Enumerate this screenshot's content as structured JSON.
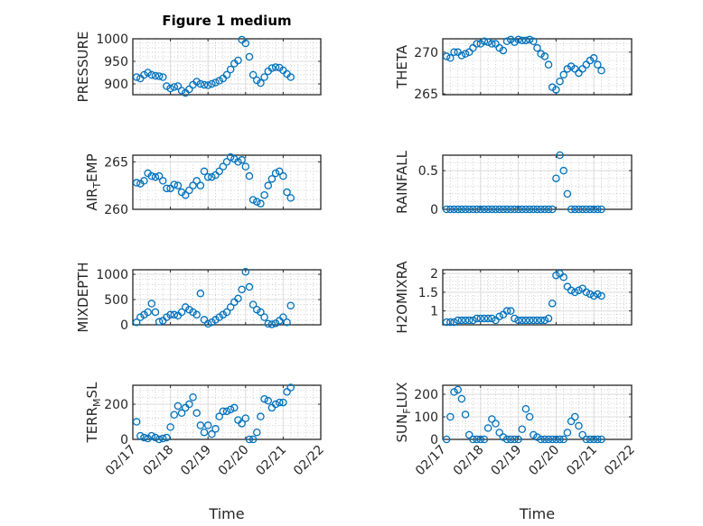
{
  "chart_data": {
    "type": "scatter",
    "title": "Figure 1 medium",
    "marker": "circle",
    "color": "#0072BD",
    "grid": "on (major + minor)",
    "x_unit": "days since 02/17",
    "xlim": [
      0,
      5
    ],
    "xticks": [
      0,
      1,
      2,
      3,
      4,
      5
    ],
    "xtick_labels": [
      "02/17",
      "02/18",
      "02/19",
      "02/20",
      "02/21",
      "02/22"
    ],
    "xlabel": "Time",
    "x": [
      0.1,
      0.2,
      0.3,
      0.4,
      0.5,
      0.6,
      0.7,
      0.8,
      0.9,
      1.0,
      1.1,
      1.2,
      1.3,
      1.4,
      1.5,
      1.6,
      1.7,
      1.8,
      1.9,
      2.0,
      2.1,
      2.2,
      2.3,
      2.4,
      2.5,
      2.6,
      2.7,
      2.8,
      2.9,
      3.0,
      3.1,
      3.2,
      3.3,
      3.4,
      3.5,
      3.6,
      3.7,
      3.8,
      3.9,
      4.0,
      4.1,
      4.2
    ],
    "panels": [
      {
        "id": "pressure",
        "ylabel": {
          "pre": "PRESSURE",
          "sub": "",
          "post": ""
        },
        "ylim": [
          876,
          1000
        ],
        "yticks": [
          900,
          950,
          1000
        ],
        "values": [
          915,
          912,
          920,
          925,
          920,
          918,
          917,
          915,
          895,
          890,
          893,
          895,
          885,
          880,
          888,
          898,
          905,
          900,
          898,
          897,
          900,
          903,
          907,
          912,
          920,
          932,
          945,
          952,
          998,
          990,
          960,
          920,
          908,
          902,
          915,
          928,
          935,
          937,
          936,
          930,
          922,
          915
        ]
      },
      {
        "id": "theta",
        "ylabel": {
          "pre": "THETA",
          "sub": "",
          "post": ""
        },
        "ylim": [
          264.9,
          271.6
        ],
        "yticks": [
          265,
          270
        ],
        "values": [
          269.5,
          269.3,
          270,
          270,
          269.6,
          269.8,
          270,
          270.5,
          271,
          271,
          271.3,
          271.2,
          271,
          271,
          270.5,
          270.2,
          271.3,
          271.5,
          271.2,
          271.5,
          271.4,
          271.4,
          271.5,
          271.3,
          270.5,
          269.8,
          269.5,
          268.5,
          265.8,
          265.5,
          266.5,
          267.3,
          268,
          268.3,
          268,
          267.5,
          268,
          268.5,
          269,
          269.3,
          268.5,
          267.8
        ]
      },
      {
        "id": "air_temp",
        "ylabel": {
          "pre": "AIR",
          "sub": "T",
          "post": "EMP"
        },
        "ylim": [
          260,
          265.7
        ],
        "yticks": [
          260,
          265
        ],
        "values": [
          262.8,
          262.7,
          263,
          263.8,
          263.5,
          263.4,
          263.5,
          263,
          262.2,
          262.2,
          262.6,
          262.5,
          261.8,
          261.5,
          262,
          262.5,
          263,
          262.5,
          264,
          263.4,
          263.4,
          263.6,
          264,
          264.5,
          265,
          265.5,
          265.3,
          265,
          265.2,
          264.5,
          263.5,
          261,
          260.8,
          260.6,
          261.5,
          262.5,
          263.2,
          263.8,
          264,
          263.5,
          261.8,
          261.2
        ]
      },
      {
        "id": "rainfall",
        "ylabel": {
          "pre": "RAINFALL",
          "sub": "",
          "post": ""
        },
        "ylim": [
          0,
          0.7
        ],
        "yticks": [
          0,
          0.5
        ],
        "values": [
          0,
          0,
          0,
          0,
          0,
          0,
          0,
          0,
          0,
          0,
          0,
          0,
          0,
          0,
          0,
          0,
          0,
          0,
          0,
          0,
          0,
          0,
          0,
          0,
          0,
          0,
          0,
          0,
          0,
          0.4,
          0.7,
          0.5,
          0.2,
          0,
          0,
          0,
          0,
          0,
          0,
          0,
          0,
          0
        ]
      },
      {
        "id": "mixdepth",
        "ylabel": {
          "pre": "MIXDEPTH",
          "sub": "",
          "post": ""
        },
        "ylim": [
          0,
          1090
        ],
        "yticks": [
          0,
          500,
          1000
        ],
        "values": [
          50,
          150,
          200,
          250,
          420,
          250,
          60,
          80,
          150,
          200,
          200,
          180,
          250,
          350,
          300,
          250,
          200,
          620,
          100,
          20,
          50,
          100,
          150,
          200,
          250,
          350,
          450,
          520,
          700,
          1050,
          750,
          400,
          300,
          250,
          150,
          20,
          10,
          30,
          80,
          150,
          50,
          380
        ]
      },
      {
        "id": "h2omixra",
        "ylabel": {
          "pre": "H2OMIXRA",
          "sub": "",
          "post": ""
        },
        "ylim": [
          0.63,
          2.1
        ],
        "yticks": [
          1,
          1.5,
          2
        ],
        "values": [
          0.7,
          0.7,
          0.7,
          0.75,
          0.75,
          0.75,
          0.75,
          0.75,
          0.8,
          0.8,
          0.8,
          0.8,
          0.8,
          0.75,
          0.85,
          0.9,
          1.0,
          1.0,
          0.8,
          0.75,
          0.75,
          0.75,
          0.75,
          0.75,
          0.75,
          0.75,
          0.75,
          0.8,
          1.2,
          1.95,
          2.0,
          1.9,
          1.65,
          1.55,
          1.5,
          1.55,
          1.6,
          1.5,
          1.45,
          1.4,
          1.45,
          1.4
        ]
      },
      {
        "id": "terr_msl",
        "ylabel": {
          "pre": "TERR",
          "sub": "M",
          "post": "SL"
        },
        "ylim": [
          0,
          308
        ],
        "yticks": [
          0,
          200
        ],
        "values": [
          100,
          20,
          10,
          5,
          20,
          10,
          0,
          5,
          10,
          70,
          140,
          190,
          150,
          180,
          200,
          240,
          150,
          80,
          40,
          80,
          30,
          60,
          130,
          160,
          160,
          170,
          180,
          110,
          90,
          120,
          0,
          0,
          40,
          130,
          230,
          220,
          180,
          200,
          210,
          210,
          270,
          295
        ]
      },
      {
        "id": "sun_flux",
        "ylabel": {
          "pre": "SUN",
          "sub": "F",
          "post": "LUX"
        },
        "ylim": [
          0,
          240
        ],
        "yticks": [
          0,
          100,
          200
        ],
        "values": [
          0,
          100,
          210,
          220,
          180,
          110,
          20,
          0,
          0,
          0,
          0,
          50,
          90,
          70,
          30,
          10,
          0,
          0,
          0,
          0,
          45,
          135,
          100,
          20,
          10,
          0,
          0,
          0,
          0,
          0,
          0,
          0,
          30,
          80,
          100,
          60,
          20,
          0,
          0,
          0,
          0,
          0
        ]
      }
    ]
  }
}
